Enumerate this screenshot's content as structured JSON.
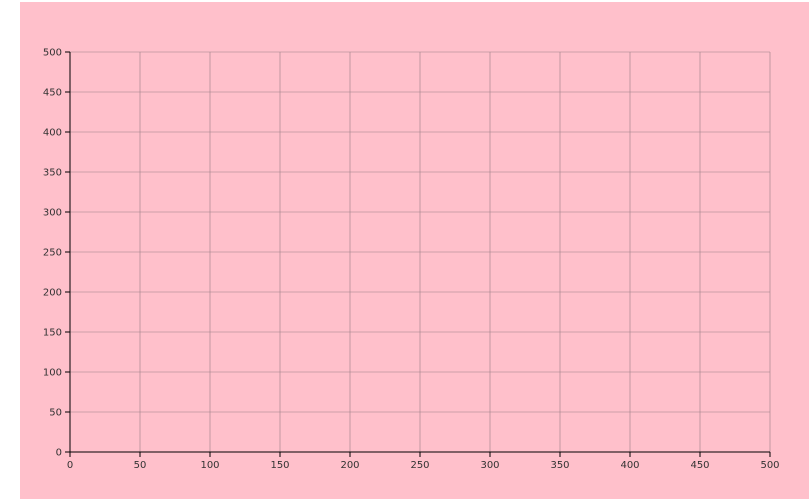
{
  "colors": {
    "background": "#ffc0cb",
    "grid": "#9a7f86",
    "axis": "#000000",
    "text": "#333333"
  },
  "chart_data": {
    "type": "line",
    "title": "",
    "xlabel": "",
    "ylabel": "",
    "xlim": [
      0,
      500
    ],
    "ylim": [
      0,
      500
    ],
    "x_ticks": [
      "0",
      "50",
      "100",
      "150",
      "200",
      "250",
      "300",
      "350",
      "400",
      "450",
      "500"
    ],
    "y_ticks": [
      "0",
      "50",
      "100",
      "150",
      "200",
      "250",
      "300",
      "350",
      "400",
      "450",
      "500"
    ],
    "grid": true,
    "series": []
  }
}
